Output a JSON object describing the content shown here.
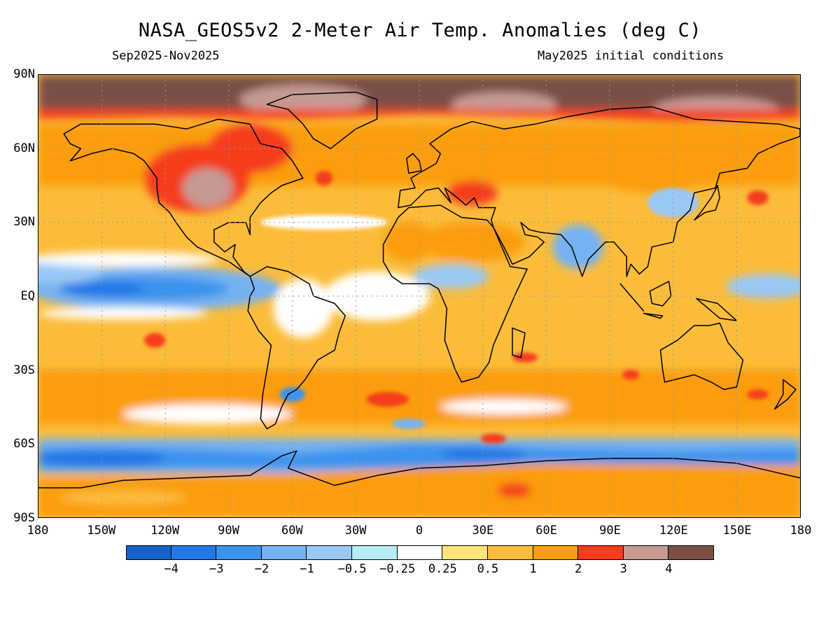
{
  "header": {
    "title": "NASA_GEOS5v2 2-Meter Air Temp. Anomalies (deg C)",
    "period": "Sep2025-Nov2025",
    "init": "May2025 initial conditions"
  },
  "map": {
    "lat_ticks": [
      "90N",
      "60N",
      "30N",
      "EQ",
      "30S",
      "60S",
      "90S"
    ],
    "lon_ticks": [
      "180",
      "150W",
      "120W",
      "90W",
      "60W",
      "30W",
      "0",
      "30E",
      "60E",
      "90E",
      "120E",
      "150E",
      "180"
    ],
    "land_color": "#000000",
    "grid_color": "#999999"
  },
  "legend": {
    "colors": [
      "#1763c9",
      "#2378e6",
      "#3b93ee",
      "#75b2f2",
      "#99c8f5",
      "#b6ecf6",
      "#ffffff",
      "#fde27d",
      "#fbbc3a",
      "#fb9d10",
      "#f53c1c",
      "#c69a93",
      "#7a5046"
    ],
    "labels": [
      "-4",
      "-3",
      "-2",
      "-1",
      "-0.5",
      "-0.25",
      "0.25",
      "0.5",
      "1",
      "2",
      "3",
      "4"
    ]
  }
}
